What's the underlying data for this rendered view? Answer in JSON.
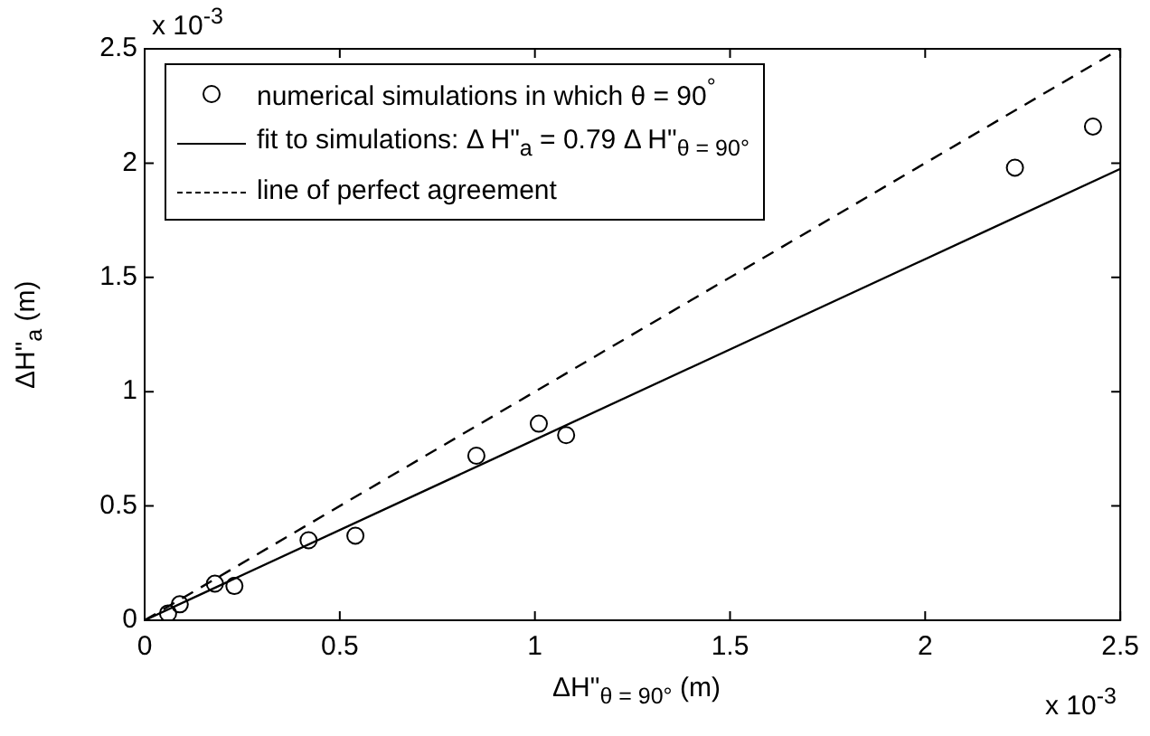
{
  "chart_data": {
    "type": "scatter",
    "xlabel": "ΔH\"$_{θ = 90°}$ (m)",
    "ylabel": "ΔH\"$_{a}$ (m)",
    "xlim": [
      0,
      2.5
    ],
    "ylim": [
      0,
      2.5
    ],
    "xticks": [
      0,
      0.5,
      1,
      1.5,
      2,
      2.5
    ],
    "yticks": [
      0,
      0.5,
      1,
      1.5,
      2,
      2.5
    ],
    "legend": "top left",
    "grid": false,
    "annotations": [
      "x 10$^{-3}$",
      "x 10$^{-3}$"
    ],
    "series": [
      {
        "name": "numerical simulations in which θ = 90$^{°}$",
        "marker": "circle",
        "color": "#000000",
        "x": [
          0.06,
          0.09,
          0.18,
          0.23,
          0.42,
          0.54,
          0.85,
          1.01,
          1.08,
          2.23,
          2.43
        ],
        "values": [
          0.03,
          0.07,
          0.16,
          0.15,
          0.35,
          0.37,
          0.72,
          0.86,
          0.81,
          1.98,
          2.16
        ]
      },
      {
        "name": "fit to simulations: Δ H\"$_{a}$ = 0.79 Δ H\"$_{θ = 90°}$",
        "type": "line",
        "marker": "none",
        "line_style": "solid",
        "color": "#000000",
        "x": [
          0,
          2.5
        ],
        "values": [
          0,
          1.975
        ]
      },
      {
        "name": "line of perfect agreement",
        "type": "line",
        "marker": "none",
        "line_style": "dashed",
        "color": "#000000",
        "x": [
          0,
          2.5
        ],
        "values": [
          0,
          2.5
        ]
      }
    ]
  }
}
